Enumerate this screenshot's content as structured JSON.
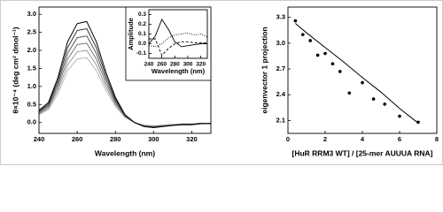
{
  "chart_data": [
    {
      "type": "line",
      "xlabel": "Wavelength (nm)",
      "ylabel": "θ×10⁻⁴ (deg cm² dmol⁻¹)",
      "x": [
        240,
        245,
        250,
        255,
        260,
        265,
        270,
        275,
        280,
        285,
        290,
        295,
        300,
        305,
        310,
        315,
        320,
        325,
        330
      ],
      "xlim": [
        240,
        330
      ],
      "xticks": [
        240,
        260,
        280,
        300,
        320
      ],
      "ylim": [
        -0.3,
        3.2
      ],
      "yticks": [
        {
          "value": 0,
          "label": "0.0"
        },
        0.5,
        {
          "value": 1,
          "label": "1.0"
        },
        1.5,
        {
          "value": 2,
          "label": "2.0"
        },
        2.5,
        {
          "value": 3,
          "label": "3.0"
        }
      ],
      "series": [
        {
          "color": "#bbbbbb",
          "values": [
            0.22,
            0.36,
            0.81,
            1.44,
            1.76,
            1.8,
            1.44,
            0.9,
            0.45,
            0.14,
            0,
            -0.07,
            -0.09,
            -0.07,
            -0.05,
            -0.04,
            -0.04,
            -0.02,
            -0.02
          ]
        },
        {
          "color": "#999999",
          "values": [
            0.24,
            0.4,
            0.9,
            1.6,
            1.96,
            2.0,
            1.6,
            1.0,
            0.5,
            0.16,
            0,
            -0.08,
            -0.1,
            -0.08,
            -0.06,
            -0.04,
            -0.04,
            -0.02,
            -0.02
          ]
        },
        {
          "color": "#777777",
          "values": [
            0.26,
            0.44,
            0.99,
            1.76,
            2.16,
            2.2,
            1.76,
            1.1,
            0.55,
            0.18,
            0,
            -0.09,
            -0.11,
            -0.09,
            -0.07,
            -0.04,
            -0.04,
            -0.02,
            -0.02
          ]
        },
        {
          "color": "#555555",
          "values": [
            0.29,
            0.48,
            1.08,
            1.92,
            2.35,
            2.4,
            1.92,
            1.2,
            0.6,
            0.19,
            0,
            -0.1,
            -0.12,
            -0.1,
            -0.07,
            -0.05,
            -0.05,
            -0.02,
            -0.02
          ]
        },
        {
          "color": "#333333",
          "values": [
            0.31,
            0.52,
            1.17,
            2.08,
            2.55,
            2.6,
            2.08,
            1.3,
            0.65,
            0.21,
            0,
            -0.1,
            -0.13,
            -0.1,
            -0.08,
            -0.05,
            -0.05,
            -0.03,
            -0.03
          ]
        },
        {
          "color": "#000000",
          "values": [
            0.34,
            0.56,
            1.26,
            2.24,
            2.74,
            2.8,
            2.24,
            1.4,
            0.7,
            0.22,
            0,
            -0.11,
            -0.14,
            -0.11,
            -0.08,
            -0.06,
            -0.06,
            -0.03,
            -0.03
          ]
        }
      ]
    },
    {
      "type": "line",
      "xlabel": "Wavelength (nm)",
      "ylabel": "Amplitude",
      "x": [
        240,
        250,
        260,
        270,
        280,
        290,
        300,
        310,
        320,
        330
      ],
      "xlim": [
        240,
        330
      ],
      "xticks": [
        240,
        260,
        280,
        300,
        320
      ],
      "ylim": [
        -0.15,
        0.35
      ],
      "yticks": [
        -0.1,
        {
          "value": 0,
          "label": "0.0"
        },
        0.1,
        0.2,
        0.3
      ],
      "series": [
        {
          "color": "#000000",
          "style": "solid",
          "values": [
            0.0,
            0.08,
            0.25,
            0.15,
            0.02,
            -0.03,
            -0.02,
            -0.01,
            0,
            0
          ]
        },
        {
          "color": "#000000",
          "style": "dashed",
          "values": [
            0.05,
            0.05,
            -0.12,
            -0.05,
            0.0,
            0.02,
            0.02,
            0.01,
            0.01,
            0.01
          ]
        },
        {
          "color": "#000000",
          "style": "dotted",
          "values": [
            -0.02,
            -0.03,
            0.0,
            0.06,
            0.09,
            0.1,
            0.11,
            0.09,
            0.1,
            0.07
          ]
        }
      ]
    },
    {
      "type": "scatter",
      "xlabel": "[HuR RRM3 WT] / [25-mer AUUUA RNA]",
      "ylabel": "eigenvector 1 projection",
      "xlim": [
        0,
        8
      ],
      "xticks": [
        0,
        2,
        4,
        6,
        8
      ],
      "ylim": [
        1.95,
        3.42
      ],
      "yticks": [
        2.1,
        2.4,
        2.7,
        {
          "value": 3,
          "label": "3.0"
        },
        3.3
      ],
      "series": [
        {
          "mode": "markers",
          "color": "#000000",
          "x": [
            0.4,
            0.8,
            1.2,
            1.6,
            2.0,
            2.4,
            2.8,
            3.3,
            4.0,
            4.6,
            5.2,
            6.0,
            7.0
          ],
          "values": [
            3.26,
            3.1,
            3.03,
            2.86,
            2.88,
            2.76,
            2.67,
            2.42,
            2.54,
            2.35,
            2.29,
            2.15,
            2.08
          ]
        },
        {
          "mode": "line",
          "color": "#000000",
          "x": [
            0.4,
            1,
            2,
            3,
            4,
            5,
            6,
            7
          ],
          "values": [
            3.23,
            3.12,
            2.95,
            2.78,
            2.6,
            2.43,
            2.24,
            2.07
          ]
        }
      ]
    }
  ]
}
